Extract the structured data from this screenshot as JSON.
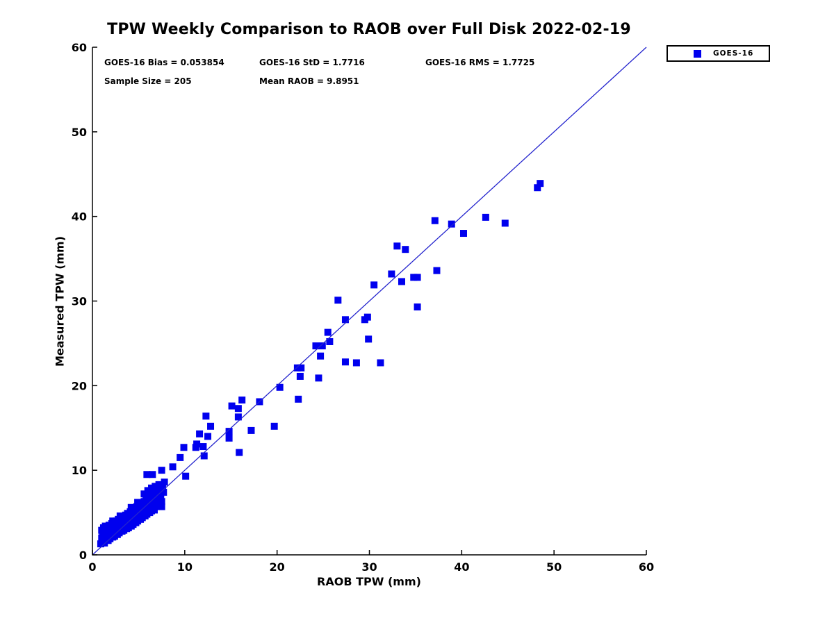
{
  "chart_data": {
    "type": "scatter",
    "title": "TPW Weekly Comparison to RAOB over Full Disk 2022-02-19",
    "xlabel": "RAOB TPW (mm)",
    "ylabel": "Measured TPW (mm)",
    "xlim": [
      0,
      60
    ],
    "ylim": [
      0,
      60
    ],
    "xticks": [
      0,
      10,
      20,
      30,
      40,
      50,
      60
    ],
    "yticks": [
      0,
      10,
      20,
      30,
      40,
      50,
      60
    ],
    "grid": false,
    "legend_position": "top-right-outside",
    "stats": {
      "bias": "GOES-16 Bias = 0.053854",
      "std": "GOES-16 StD = 1.7716",
      "rms": "GOES-16 RMS = 1.7725",
      "sample_size": "Sample Size = 205",
      "mean_raob": "Mean RAOB = 9.8951"
    },
    "reference_line": {
      "from": [
        0,
        0
      ],
      "to": [
        60,
        60
      ],
      "color": "#2323cd"
    },
    "series": [
      {
        "name": "GOES-16",
        "marker": "square",
        "color": "#0000ee",
        "points": [
          [
            48.5,
            43.9
          ],
          [
            48.2,
            43.4
          ],
          [
            42.6,
            39.9
          ],
          [
            44.7,
            39.2
          ],
          [
            37.1,
            39.5
          ],
          [
            38.9,
            39.1
          ],
          [
            40.2,
            38.0
          ],
          [
            37.3,
            33.6
          ],
          [
            33.0,
            36.5
          ],
          [
            33.9,
            36.1
          ],
          [
            32.4,
            33.2
          ],
          [
            33.5,
            32.3
          ],
          [
            34.8,
            32.8
          ],
          [
            35.2,
            32.8
          ],
          [
            30.5,
            31.9
          ],
          [
            35.2,
            29.3
          ],
          [
            26.6,
            30.1
          ],
          [
            27.4,
            27.8
          ],
          [
            29.5,
            27.8
          ],
          [
            29.8,
            28.1
          ],
          [
            25.5,
            26.3
          ],
          [
            25.7,
            25.2
          ],
          [
            24.2,
            24.7
          ],
          [
            24.9,
            24.7
          ],
          [
            24.7,
            23.5
          ],
          [
            29.9,
            25.5
          ],
          [
            27.4,
            22.8
          ],
          [
            28.6,
            22.7
          ],
          [
            31.2,
            22.7
          ],
          [
            22.2,
            22.1
          ],
          [
            22.6,
            22.1
          ],
          [
            22.5,
            21.1
          ],
          [
            24.5,
            20.9
          ],
          [
            22.3,
            18.4
          ],
          [
            20.3,
            19.8
          ],
          [
            19.7,
            15.2
          ],
          [
            18.1,
            18.1
          ],
          [
            16.2,
            18.3
          ],
          [
            15.1,
            17.6
          ],
          [
            15.8,
            17.3
          ],
          [
            15.8,
            16.3
          ],
          [
            17.2,
            14.7
          ],
          [
            14.8,
            14.6
          ],
          [
            14.8,
            13.8
          ],
          [
            15.9,
            12.1
          ],
          [
            12.3,
            16.4
          ],
          [
            12.8,
            15.2
          ],
          [
            11.6,
            14.3
          ],
          [
            12.5,
            14.0
          ],
          [
            11.3,
            13.1
          ],
          [
            9.9,
            12.7
          ],
          [
            9.5,
            11.5
          ],
          [
            12.0,
            12.8
          ],
          [
            12.1,
            11.7
          ],
          [
            10.1,
            9.3
          ],
          [
            11.2,
            12.7
          ],
          [
            8.7,
            10.4
          ],
          [
            7.5,
            10.0
          ],
          [
            6.5,
            9.5
          ],
          [
            5.9,
            9.5
          ],
          [
            7.5,
            5.7
          ],
          [
            6.7,
            5.3
          ],
          [
            0.9,
            1.3
          ],
          [
            1.0,
            2.0
          ],
          [
            1.0,
            2.9
          ],
          [
            1.1,
            1.6
          ],
          [
            1.1,
            2.4
          ],
          [
            1.2,
            3.2
          ],
          [
            1.2,
            1.9
          ],
          [
            1.3,
            2.6
          ],
          [
            1.3,
            1.4
          ],
          [
            1.4,
            2.2
          ],
          [
            1.4,
            3.4
          ],
          [
            1.5,
            1.8
          ],
          [
            1.5,
            2.8
          ],
          [
            1.6,
            2.3
          ],
          [
            1.6,
            3.1
          ],
          [
            1.7,
            1.7
          ],
          [
            1.7,
            2.7
          ],
          [
            1.8,
            2.1
          ],
          [
            1.8,
            3.5
          ],
          [
            1.9,
            2.5
          ],
          [
            1.9,
            1.9
          ],
          [
            2.0,
            3.0
          ],
          [
            2.0,
            2.3
          ],
          [
            2.1,
            3.7
          ],
          [
            2.1,
            2.7
          ],
          [
            2.2,
            2.1
          ],
          [
            2.2,
            3.2
          ],
          [
            2.3,
            2.5
          ],
          [
            2.3,
            3.9
          ],
          [
            2.4,
            2.9
          ],
          [
            2.4,
            2.2
          ],
          [
            2.5,
            3.4
          ],
          [
            2.5,
            2.6
          ],
          [
            2.6,
            3.0
          ],
          [
            2.6,
            4.0
          ],
          [
            2.7,
            2.4
          ],
          [
            2.7,
            3.5
          ],
          [
            2.8,
            2.8
          ],
          [
            2.8,
            4.2
          ],
          [
            2.9,
            3.2
          ],
          [
            2.9,
            2.6
          ],
          [
            3.0,
            3.7
          ],
          [
            3.0,
            3.0
          ],
          [
            3.1,
            4.3
          ],
          [
            3.1,
            3.4
          ],
          [
            3.2,
            2.8
          ],
          [
            3.2,
            3.9
          ],
          [
            3.3,
            3.2
          ],
          [
            3.3,
            4.5
          ],
          [
            3.4,
            3.6
          ],
          [
            3.4,
            2.9
          ],
          [
            3.5,
            4.1
          ],
          [
            3.5,
            3.3
          ],
          [
            3.6,
            4.7
          ],
          [
            3.6,
            3.7
          ],
          [
            3.7,
            3.1
          ],
          [
            3.7,
            4.3
          ],
          [
            3.8,
            3.5
          ],
          [
            3.8,
            4.9
          ],
          [
            3.9,
            3.9
          ],
          [
            3.9,
            3.2
          ],
          [
            4.0,
            4.5
          ],
          [
            4.0,
            3.7
          ],
          [
            4.1,
            5.1
          ],
          [
            4.1,
            4.1
          ],
          [
            4.2,
            3.4
          ],
          [
            4.2,
            4.7
          ],
          [
            4.3,
            3.9
          ],
          [
            4.3,
            5.3
          ],
          [
            4.4,
            4.3
          ],
          [
            4.4,
            3.6
          ],
          [
            4.5,
            4.9
          ],
          [
            4.5,
            4.1
          ],
          [
            4.6,
            5.5
          ],
          [
            4.6,
            4.5
          ],
          [
            4.7,
            3.8
          ],
          [
            4.7,
            5.1
          ],
          [
            4.8,
            4.3
          ],
          [
            4.8,
            5.7
          ],
          [
            4.9,
            4.7
          ],
          [
            4.9,
            4.0
          ],
          [
            5.0,
            5.3
          ],
          [
            5.0,
            4.5
          ],
          [
            5.1,
            5.9
          ],
          [
            5.1,
            4.9
          ],
          [
            5.2,
            4.2
          ],
          [
            5.2,
            5.5
          ],
          [
            5.3,
            4.7
          ],
          [
            5.3,
            6.1
          ],
          [
            5.4,
            5.1
          ],
          [
            5.4,
            4.4
          ],
          [
            5.5,
            5.7
          ],
          [
            5.5,
            4.9
          ],
          [
            5.6,
            6.3
          ],
          [
            5.6,
            5.3
          ],
          [
            5.7,
            4.6
          ],
          [
            5.7,
            5.9
          ],
          [
            5.8,
            5.1
          ],
          [
            5.8,
            6.5
          ],
          [
            5.9,
            5.5
          ],
          [
            5.9,
            4.8
          ],
          [
            6.0,
            6.1
          ],
          [
            6.0,
            5.3
          ],
          [
            6.1,
            6.7
          ],
          [
            6.1,
            5.7
          ],
          [
            6.2,
            5.0
          ],
          [
            6.2,
            6.3
          ],
          [
            6.3,
            5.5
          ],
          [
            6.3,
            6.9
          ],
          [
            6.4,
            5.9
          ],
          [
            6.4,
            5.2
          ],
          [
            6.5,
            6.5
          ],
          [
            6.5,
            5.8
          ],
          [
            6.6,
            7.1
          ],
          [
            6.6,
            6.1
          ],
          [
            6.7,
            5.5
          ],
          [
            6.7,
            6.7
          ],
          [
            6.8,
            6.0
          ],
          [
            6.8,
            7.3
          ],
          [
            6.9,
            6.3
          ],
          [
            6.9,
            5.7
          ],
          [
            7.0,
            6.9
          ],
          [
            7.0,
            6.2
          ],
          [
            7.1,
            7.5
          ],
          [
            7.1,
            6.5
          ],
          [
            7.2,
            5.9
          ],
          [
            7.2,
            7.1
          ],
          [
            7.3,
            6.7
          ],
          [
            7.4,
            7.7
          ],
          [
            7.4,
            7.0
          ],
          [
            7.5,
            6.3
          ],
          [
            5.6,
            7.2
          ],
          [
            6.0,
            7.6
          ],
          [
            6.4,
            7.9
          ],
          [
            6.8,
            8.1
          ],
          [
            7.2,
            8.3
          ],
          [
            7.6,
            8.0
          ],
          [
            7.7,
            7.4
          ],
          [
            7.8,
            8.6
          ],
          [
            4.2,
            5.6
          ],
          [
            3.0,
            4.6
          ],
          [
            2.2,
            4.0
          ],
          [
            4.9,
            6.2
          ]
        ]
      }
    ]
  }
}
